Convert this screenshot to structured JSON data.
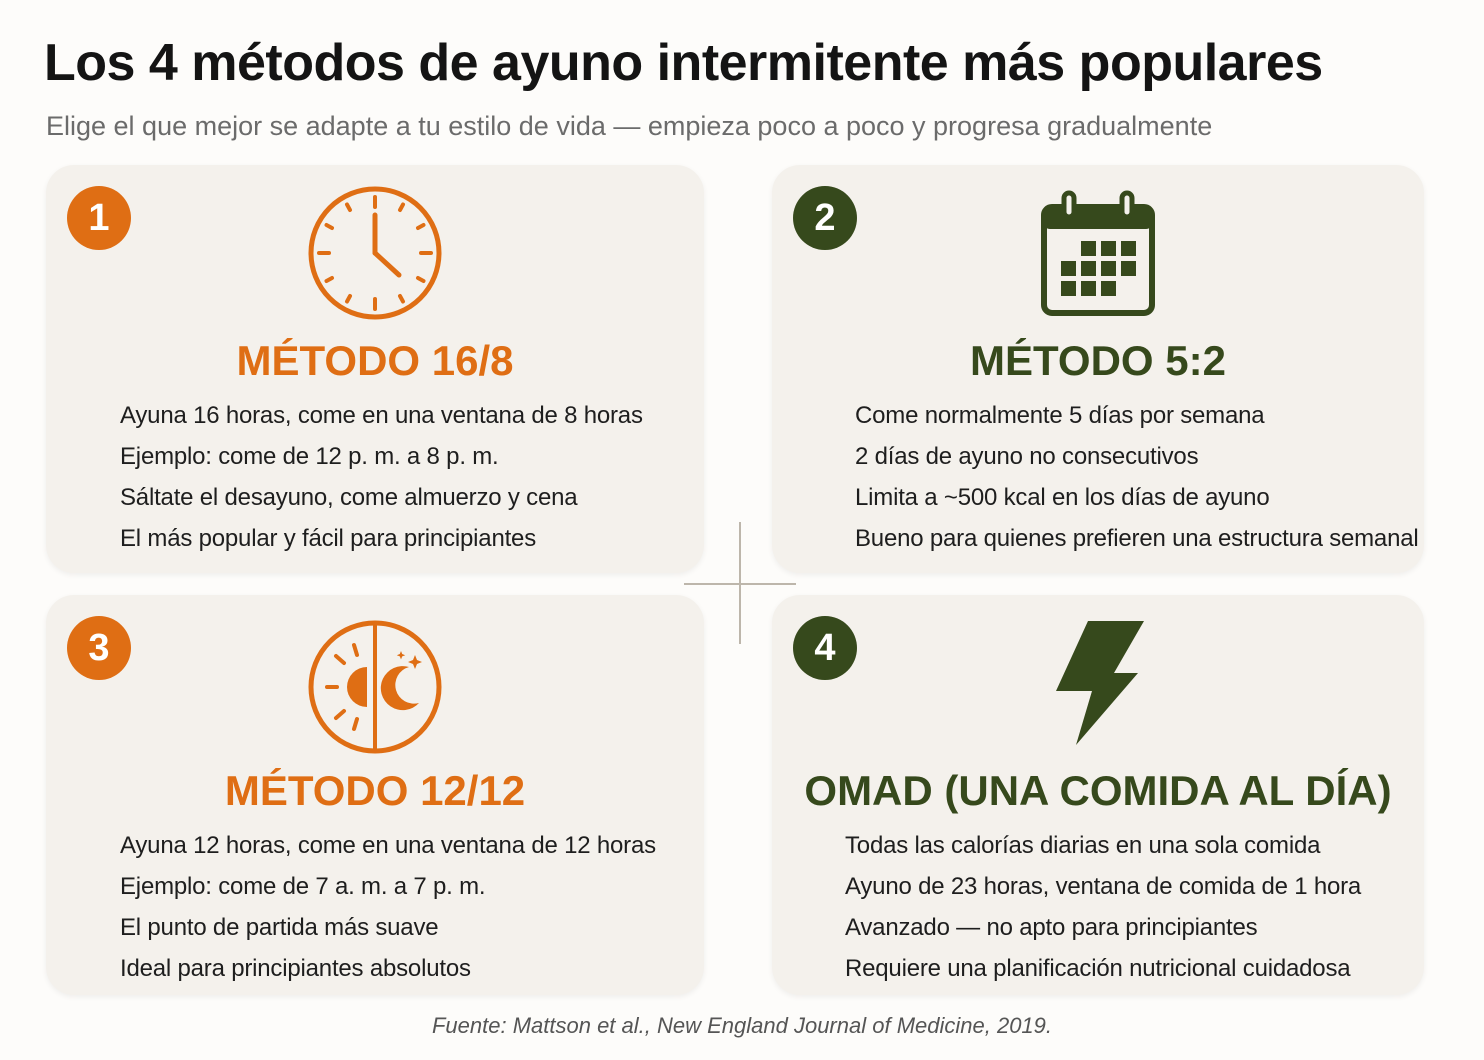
{
  "header": {
    "title": "Los 4 métodos de ayuno intermitente más populares",
    "subtitle": "Elige el que mejor se adapte a tu estilo de vida — empieza poco a poco y progresa gradualmente"
  },
  "colors": {
    "orange": "#df6e14",
    "green": "#36491c",
    "card_bg": "#f4f1ec"
  },
  "cards": [
    {
      "number": "1",
      "icon": "clock-icon",
      "title": "MÉTODO 16/8",
      "points": [
        "Ayuna 16 horas, come en una ventana de 8 horas",
        "Ejemplo: come de 12 p. m. a 8 p. m.",
        "Sáltate el desayuno, come almuerzo y cena",
        "El más popular y fácil para principiantes"
      ]
    },
    {
      "number": "2",
      "icon": "calendar-icon",
      "title": "MÉTODO 5:2",
      "points": [
        "Come normalmente 5 días por semana",
        "2 días de ayuno no consecutivos",
        "Limita a ~500 kcal en los días de ayuno",
        "Bueno para quienes prefieren una estructura semanal"
      ]
    },
    {
      "number": "3",
      "icon": "sun-moon-icon",
      "title": "MÉTODO 12/12",
      "points": [
        "Ayuna 12 horas, come en una ventana de 12 horas",
        "Ejemplo: come de 7 a. m. a 7 p. m.",
        "El punto de partida más suave",
        "Ideal para principiantes absolutos"
      ]
    },
    {
      "number": "4",
      "icon": "lightning-bolt-icon",
      "title": "OMAD (UNA COMIDA AL DÍA)",
      "points": [
        "Todas las calorías diarias en una sola comida",
        "Ayuno de 23 horas, ventana de comida de 1 hora",
        "Avanzado — no apto para principiantes",
        "Requiere una planificación nutricional cuidadosa"
      ]
    }
  ],
  "footer": {
    "source": "Fuente: Mattson et al., New England Journal of Medicine, 2019."
  }
}
